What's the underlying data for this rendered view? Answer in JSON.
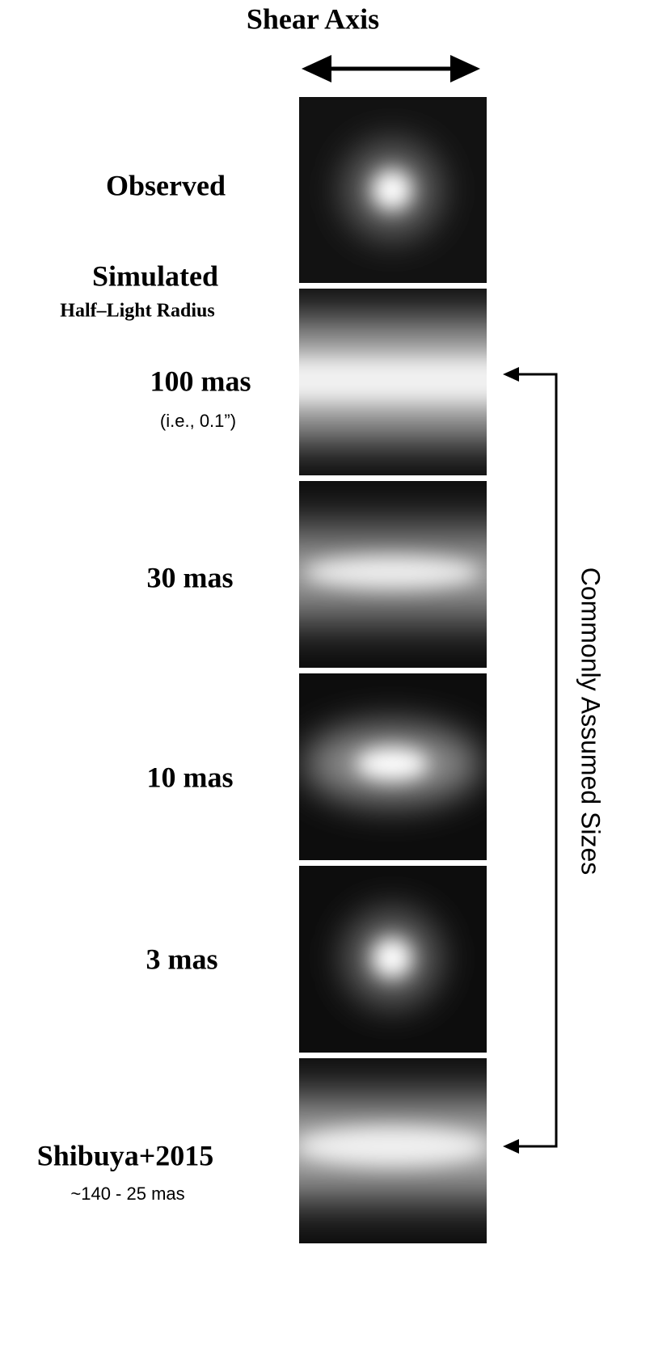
{
  "title": "Shear Axis",
  "observed_label": "Observed",
  "simulated_heading": {
    "title": "Simulated",
    "subtitle": "Half–Light Radius"
  },
  "rows": [
    {
      "label": "100 mas",
      "note": "(i.e., 0.1”)"
    },
    {
      "label": "30 mas"
    },
    {
      "label": "10 mas"
    },
    {
      "label": "3 mas"
    },
    {
      "label": "Shibuya+2015",
      "note": "~140 - 25 mas"
    }
  ],
  "bracket_label": "Commonly Assumed Sizes"
}
